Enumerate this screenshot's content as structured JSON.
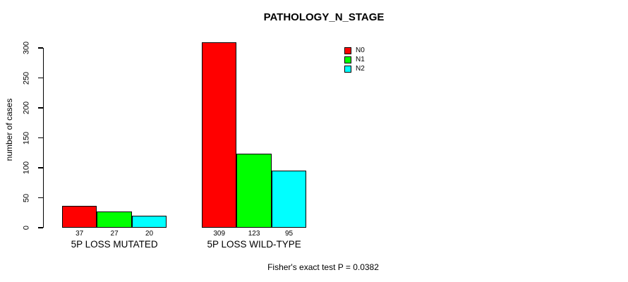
{
  "chart_data": {
    "type": "bar",
    "title": "PATHOLOGY_N_STAGE",
    "ylabel": "number of cases",
    "footnote": "Fisher's exact test P = 0.0382",
    "ylim": [
      0,
      300
    ],
    "yticks": [
      0,
      50,
      100,
      150,
      200,
      250,
      300
    ],
    "categories": [
      "5P LOSS MUTATED",
      "5P LOSS WILD-TYPE"
    ],
    "series": [
      {
        "name": "N0",
        "color": "#ff0000",
        "values": [
          37,
          309
        ]
      },
      {
        "name": "N1",
        "color": "#00ff00",
        "values": [
          27,
          123
        ]
      },
      {
        "name": "N2",
        "color": "#00ffff",
        "values": [
          20,
          95
        ]
      }
    ],
    "show_bar_value_labels": true,
    "legend_position": "top-right-inside",
    "grid": false,
    "background_color": "#ffffff",
    "text_color": "#000000",
    "axis_color": "#000000"
  }
}
